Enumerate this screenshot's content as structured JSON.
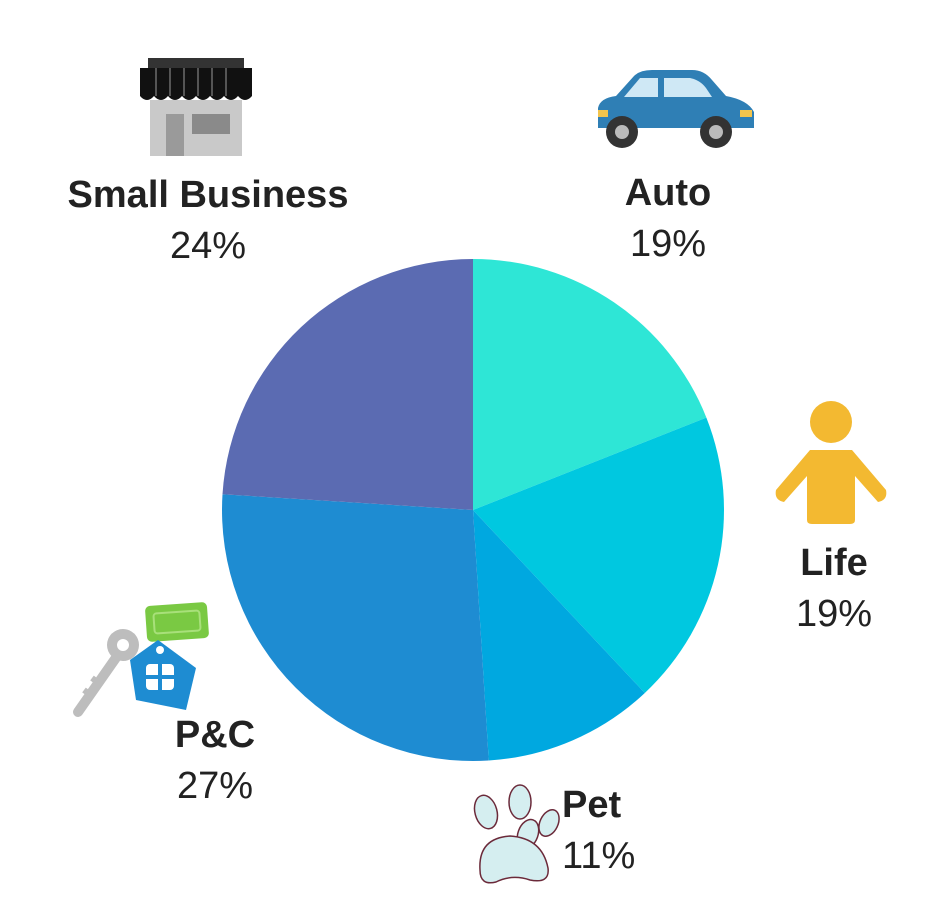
{
  "chart_data": {
    "type": "pie",
    "title": "",
    "categories": [
      "Auto",
      "Life",
      "Pet",
      "P&C",
      "Small Business"
    ],
    "values": [
      19,
      19,
      11,
      27,
      24
    ],
    "value_labels": [
      "19%",
      "19%",
      "11%",
      "27%",
      "24%"
    ],
    "colors": [
      "#2ee6d6",
      "#00c8e0",
      "#00a8e0",
      "#1e8cd2",
      "#5b6bb2"
    ],
    "start_angle_deg": 0,
    "direction": "clockwise",
    "legend": "none",
    "icons": [
      "car-icon",
      "person-icon",
      "paw-icon",
      "house-key-icon",
      "storefront-icon"
    ]
  }
}
